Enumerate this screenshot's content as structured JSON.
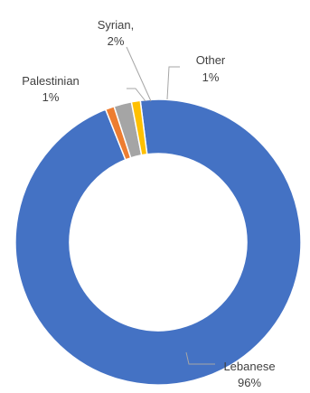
{
  "chart_data": {
    "type": "pie",
    "variant": "doughnut",
    "title": "",
    "legend": "none",
    "slices": [
      {
        "name": "Lebanese",
        "value": 96,
        "label": "Lebanese",
        "value_label": "96%",
        "color": "#4472c4"
      },
      {
        "name": "Palestinian",
        "value": 1,
        "label": "Palestinian",
        "value_label": "1%",
        "color": "#ed7d31"
      },
      {
        "name": "Syrian",
        "value": 2,
        "label": "Syrian,",
        "value_label": "2%",
        "color": "#a5a5a5"
      },
      {
        "name": "Other",
        "value": 1,
        "label": "Other",
        "value_label": "1%",
        "color": "#ffc000"
      }
    ]
  }
}
